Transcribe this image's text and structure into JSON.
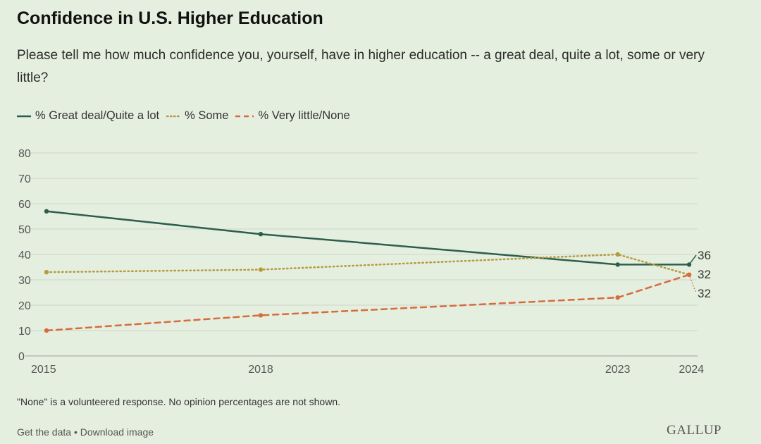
{
  "header": {
    "title": "Confidence in U.S. Higher Education",
    "subtitle": "Please tell me how much confidence you, yourself, have in higher education -- a great deal, quite a lot, some or very little?"
  },
  "legend": [
    {
      "label": "% Great deal/Quite a lot",
      "color": "#2d5e4d",
      "style": "solid"
    },
    {
      "label": "% Some",
      "color": "#b59a3f",
      "style": "dotted"
    },
    {
      "label": "% Very little/None",
      "color": "#d66c3d",
      "style": "dashed"
    }
  ],
  "chart_data": {
    "type": "line",
    "x": [
      2015,
      2018,
      2023,
      2024
    ],
    "x_tick_labels": [
      "2015",
      "2018",
      "2023",
      "2024"
    ],
    "xlim": [
      2015,
      2024
    ],
    "ylim": [
      0,
      80
    ],
    "y_ticks": [
      "0",
      "10",
      "20",
      "30",
      "40",
      "50",
      "60",
      "70",
      "80"
    ],
    "grid": "horizontal",
    "legend_position": "top-left",
    "series": [
      {
        "name": "% Great deal/Quite a lot",
        "values": [
          57,
          48,
          36,
          36
        ],
        "color": "#2d5e4d",
        "style": "solid",
        "end_label": "36"
      },
      {
        "name": "% Some",
        "values": [
          33,
          34,
          40,
          32
        ],
        "color": "#b59a3f",
        "style": "dotted",
        "end_label": "32"
      },
      {
        "name": "% Very little/None",
        "values": [
          10,
          16,
          23,
          32
        ],
        "color": "#d66c3d",
        "style": "dashed",
        "end_label": "32"
      }
    ]
  },
  "footer": {
    "note": "\"None\" is a volunteered response. No opinion percentages are not shown.",
    "get_data": "Get the data",
    "separator": " • ",
    "download": "Download image",
    "brand": "GALLUP"
  }
}
